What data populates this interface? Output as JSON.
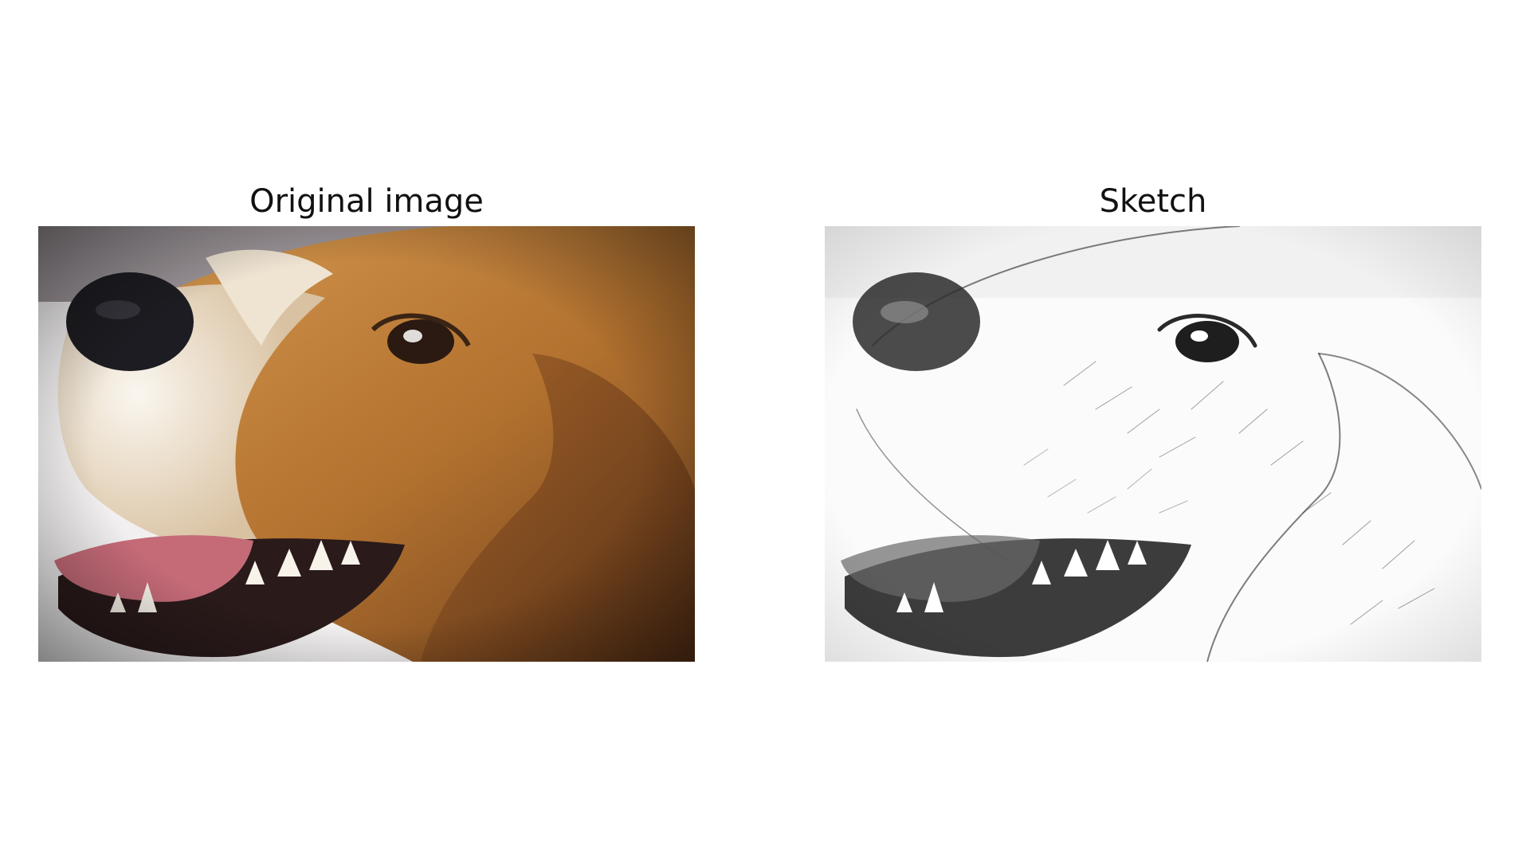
{
  "panels": {
    "left": {
      "title": "Original image",
      "image_subject": "beagle-face-photo"
    },
    "right": {
      "title": "Sketch",
      "image_subject": "beagle-face-pencil-sketch"
    }
  },
  "colors": {
    "background": "#ffffff",
    "fur_brown": "#b3722f",
    "fur_dark": "#7a4a22",
    "fur_white": "#f3ece2",
    "nose": "#1c1c22",
    "tongue": "#c56b78",
    "wall": "#9a9397",
    "sketch_ink": "#2a2a2a"
  }
}
